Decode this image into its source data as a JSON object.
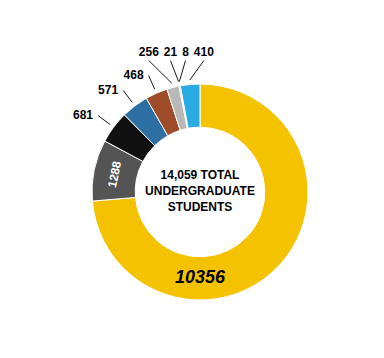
{
  "chart_data": {
    "type": "donut",
    "values": [
      10356,
      1288,
      681,
      571,
      468,
      256,
      21,
      8,
      410
    ],
    "colors": [
      "#F5C200",
      "#545454",
      "#111111",
      "#2E6FA3",
      "#9E4B2A",
      "#B8B8B8",
      "#2D7A4F",
      "#A0A0A0",
      "#2AACE2"
    ],
    "annotations": [
      "14,059 TOTAL",
      "UNDERGRADUATE",
      "STUDENTS"
    ],
    "data_labels": true
  }
}
